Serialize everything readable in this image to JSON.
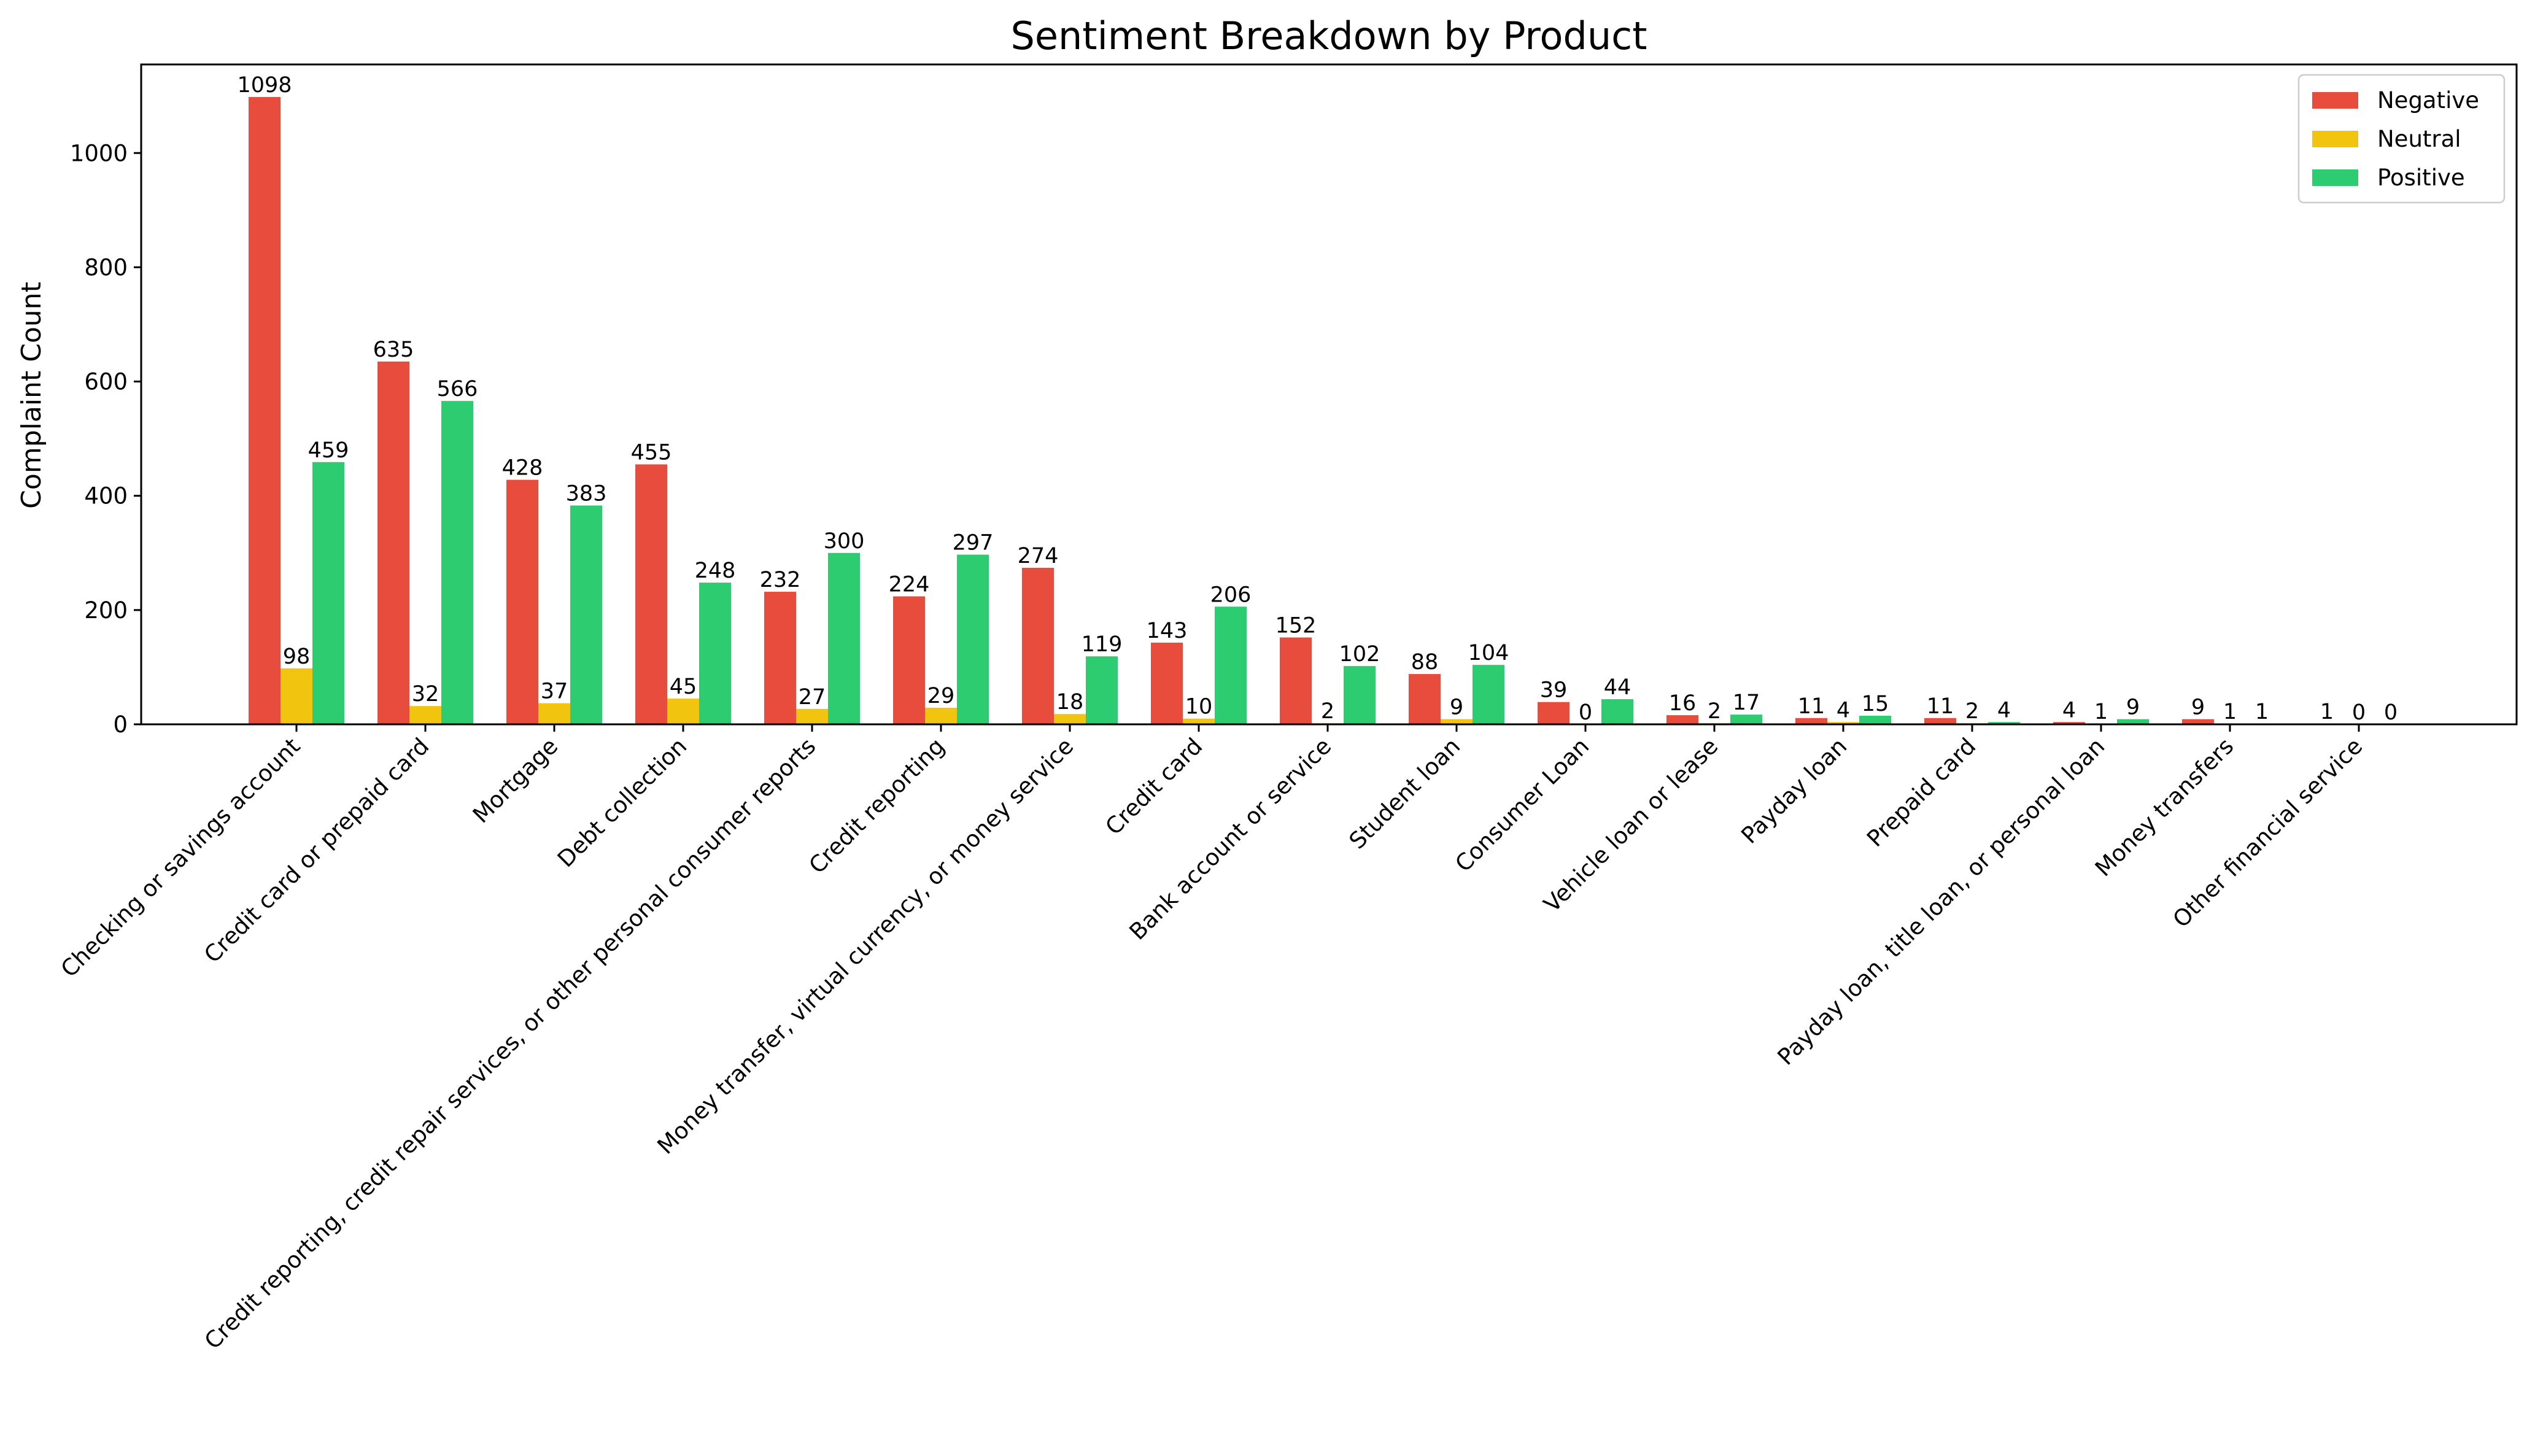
{
  "chart_data": {
    "type": "bar",
    "title": "Sentiment Breakdown by Product",
    "xlabel": "",
    "ylabel": "Complaint Count",
    "ylim": [
      0,
      1155
    ],
    "yticks": [
      0,
      200,
      400,
      600,
      800,
      1000
    ],
    "grid": false,
    "legend_position": "top-right",
    "categories": [
      "Checking or savings account",
      "Credit card or prepaid card",
      "Mortgage",
      "Debt collection",
      "Credit reporting, credit repair services, or other personal consumer reports",
      "Credit reporting",
      "Money transfer, virtual currency, or money service",
      "Credit card",
      "Bank account or service",
      "Student loan",
      "Consumer Loan",
      "Vehicle loan or lease",
      "Payday loan",
      "Prepaid card",
      "Payday loan, title loan, or personal loan",
      "Money transfers",
      "Other financial service"
    ],
    "series": [
      {
        "name": "Negative",
        "color": "#e74c3c",
        "values": [
          1098,
          635,
          428,
          455,
          232,
          224,
          274,
          143,
          152,
          88,
          39,
          16,
          11,
          11,
          4,
          9,
          1
        ]
      },
      {
        "name": "Neutral",
        "color": "#f1c40f",
        "values": [
          98,
          32,
          37,
          45,
          27,
          29,
          18,
          10,
          2,
          9,
          0,
          2,
          4,
          2,
          1,
          1,
          0
        ]
      },
      {
        "name": "Positive",
        "color": "#2ecc71",
        "values": [
          459,
          566,
          383,
          248,
          300,
          297,
          119,
          206,
          102,
          104,
          44,
          17,
          15,
          4,
          9,
          1,
          0
        ]
      }
    ]
  }
}
